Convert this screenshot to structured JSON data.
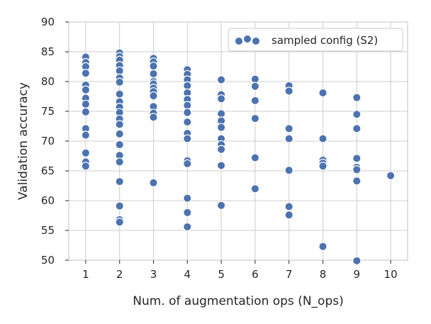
{
  "colors": {
    "marker": "#4c72b0",
    "marker_edge": "#ffffff",
    "grid": "#cccccc",
    "text": "#262626"
  },
  "chart_data": {
    "type": "scatter",
    "title": "",
    "xlabel": "Num. of augmentation ops (N_ops)",
    "ylabel": "Validation accuracy",
    "xlim": [
      0.5,
      10.5
    ],
    "ylim": [
      50,
      90
    ],
    "xticks": [
      1,
      2,
      3,
      4,
      5,
      6,
      7,
      8,
      9,
      10
    ],
    "yticks": [
      50,
      55,
      60,
      65,
      70,
      75,
      80,
      85,
      90
    ],
    "grid": true,
    "legend": {
      "position": "top-right",
      "entries": [
        "sampled config (S2)"
      ]
    },
    "series": [
      {
        "name": "sampled config (S2)",
        "points": [
          [
            1,
            84.1
          ],
          [
            1,
            83.2
          ],
          [
            1,
            82.5
          ],
          [
            1,
            81.4
          ],
          [
            1,
            79.4
          ],
          [
            1,
            78.6
          ],
          [
            1,
            77.2
          ],
          [
            1,
            76.2
          ],
          [
            1,
            74.9
          ],
          [
            1,
            72.1
          ],
          [
            1,
            71.0
          ],
          [
            1,
            68.0
          ],
          [
            1,
            66.5
          ],
          [
            1,
            65.8
          ],
          [
            2,
            84.8
          ],
          [
            2,
            84.2
          ],
          [
            2,
            83.6
          ],
          [
            2,
            82.7
          ],
          [
            2,
            81.8
          ],
          [
            2,
            80.6
          ],
          [
            2,
            79.9
          ],
          [
            2,
            77.9
          ],
          [
            2,
            76.6
          ],
          [
            2,
            75.7
          ],
          [
            2,
            74.8
          ],
          [
            2,
            73.7
          ],
          [
            2,
            72.8
          ],
          [
            2,
            71.2
          ],
          [
            2,
            69.4
          ],
          [
            2,
            67.6
          ],
          [
            2,
            66.5
          ],
          [
            2,
            63.2
          ],
          [
            2,
            59.1
          ],
          [
            2,
            56.8
          ],
          [
            2,
            56.4
          ],
          [
            3,
            83.9
          ],
          [
            3,
            83.3
          ],
          [
            3,
            82.6
          ],
          [
            3,
            81.3
          ],
          [
            3,
            80.0
          ],
          [
            3,
            79.6
          ],
          [
            3,
            78.9
          ],
          [
            3,
            78.3
          ],
          [
            3,
            77.6
          ],
          [
            3,
            75.8
          ],
          [
            3,
            74.7
          ],
          [
            3,
            74.0
          ],
          [
            3,
            63.0
          ],
          [
            4,
            82.0
          ],
          [
            4,
            81.2
          ],
          [
            4,
            80.3
          ],
          [
            4,
            79.3
          ],
          [
            4,
            78.1
          ],
          [
            4,
            77.0
          ],
          [
            4,
            76.0
          ],
          [
            4,
            74.8
          ],
          [
            4,
            73.2
          ],
          [
            4,
            71.3
          ],
          [
            4,
            70.4
          ],
          [
            4,
            66.7
          ],
          [
            4,
            66.2
          ],
          [
            4,
            60.4
          ],
          [
            4,
            58.0
          ],
          [
            4,
            55.6
          ],
          [
            5,
            80.3
          ],
          [
            5,
            77.8
          ],
          [
            5,
            77.1
          ],
          [
            5,
            74.6
          ],
          [
            5,
            73.4
          ],
          [
            5,
            72.3
          ],
          [
            5,
            70.4
          ],
          [
            5,
            69.4
          ],
          [
            5,
            68.6
          ],
          [
            5,
            65.9
          ],
          [
            5,
            59.2
          ],
          [
            6,
            80.4
          ],
          [
            6,
            79.2
          ],
          [
            6,
            76.8
          ],
          [
            6,
            73.8
          ],
          [
            6,
            67.2
          ],
          [
            6,
            62.0
          ],
          [
            7,
            79.3
          ],
          [
            7,
            78.4
          ],
          [
            7,
            72.1
          ],
          [
            7,
            70.4
          ],
          [
            7,
            65.1
          ],
          [
            7,
            59.0
          ],
          [
            7,
            57.6
          ],
          [
            8,
            78.1
          ],
          [
            8,
            70.4
          ],
          [
            8,
            66.8
          ],
          [
            8,
            66.3
          ],
          [
            8,
            65.8
          ],
          [
            8,
            52.3
          ],
          [
            9,
            77.3
          ],
          [
            9,
            74.5
          ],
          [
            9,
            72.1
          ],
          [
            9,
            67.1
          ],
          [
            9,
            65.6
          ],
          [
            9,
            65.2
          ],
          [
            9,
            63.3
          ],
          [
            9,
            49.9
          ],
          [
            10,
            64.2
          ]
        ]
      }
    ]
  }
}
